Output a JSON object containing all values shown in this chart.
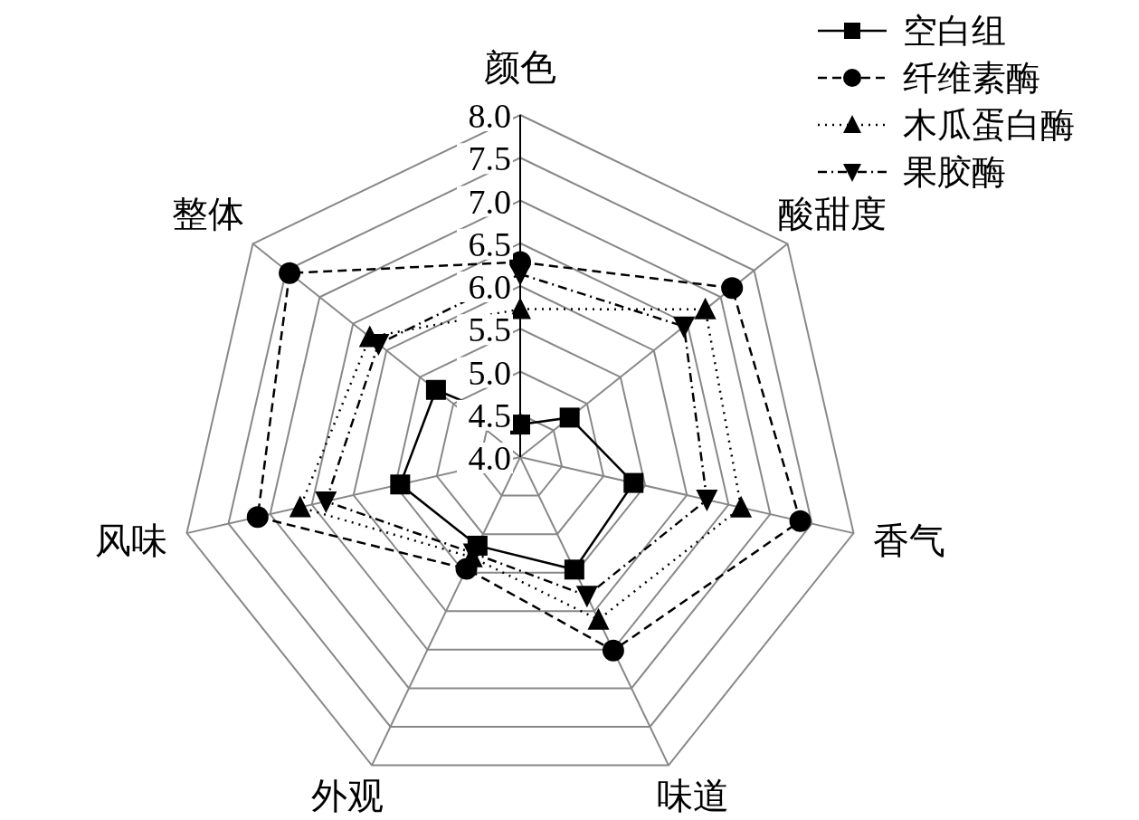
{
  "chart_data": {
    "type": "radar",
    "categories": [
      "颜色",
      "酸甜度",
      "香气",
      "味道",
      "外观",
      "风味",
      "整体"
    ],
    "ylim": [
      4.0,
      8.0
    ],
    "yticks": [
      {
        "value": 4.0,
        "label": "4.0"
      },
      {
        "value": 4.5,
        "label": "4.5"
      },
      {
        "value": 5.0,
        "label": "5.0"
      },
      {
        "value": 5.5,
        "label": "5.5"
      },
      {
        "value": 6.0,
        "label": "6.0"
      },
      {
        "value": 6.5,
        "label": "6.5"
      },
      {
        "value": 7.0,
        "label": "7.0"
      },
      {
        "value": 7.5,
        "label": "7.5"
      },
      {
        "value": 8.0,
        "label": "8.0"
      }
    ],
    "grid": true,
    "legend": "top right",
    "series": [
      {
        "name": "空白组",
        "color": "#000000",
        "marker": "square",
        "line_style": "solid",
        "values": [
          4.38,
          4.74,
          5.36,
          5.46,
          5.15,
          5.44,
          5.26
        ]
      },
      {
        "name": "纤维素酶",
        "color": "#000000",
        "marker": "circle",
        "line_style": "dashed",
        "values": [
          6.28,
          7.17,
          7.36,
          6.51,
          5.45,
          7.15,
          7.45
        ]
      },
      {
        "name": "木瓜蛋白酶",
        "color": "#000000",
        "marker": "triangle",
        "line_style": "dotted",
        "values": [
          5.73,
          6.77,
          6.65,
          6.11,
          5.3,
          6.64,
          6.25
        ]
      },
      {
        "name": "果胶酶",
        "color": "#000000",
        "marker": "triangle-down",
        "line_style": "dashdot",
        "values": [
          6.14,
          6.45,
          6.24,
          5.8,
          5.25,
          6.33,
          6.12
        ]
      }
    ]
  }
}
